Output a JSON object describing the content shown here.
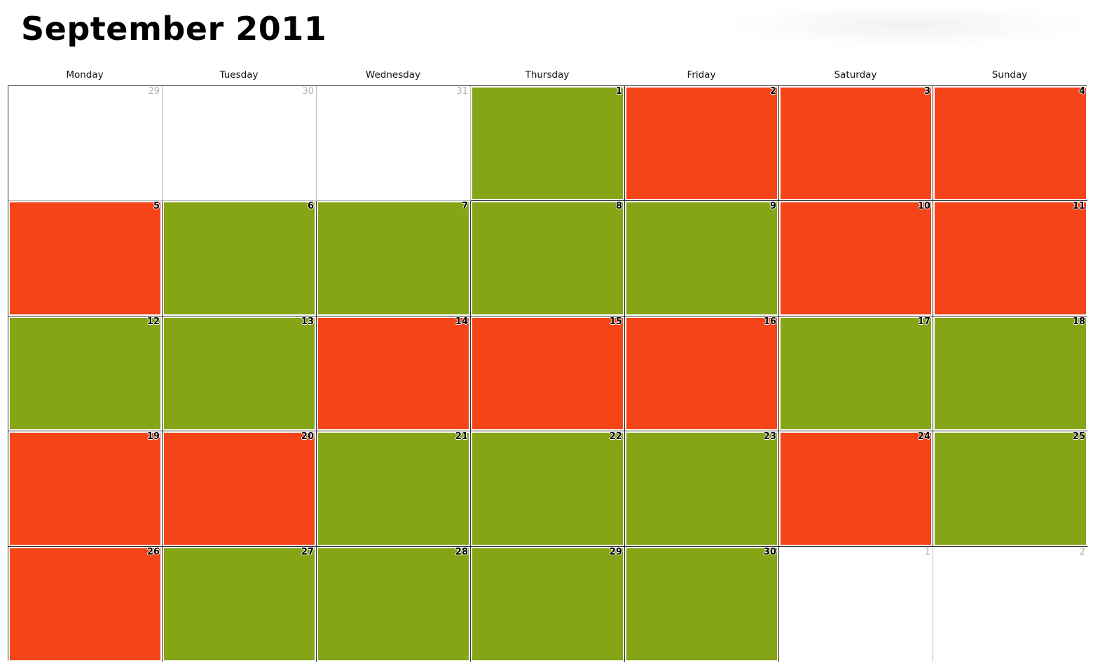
{
  "calendar": {
    "title": "September 2011",
    "weekdays": [
      "Monday",
      "Tuesday",
      "Wednesday",
      "Thursday",
      "Friday",
      "Saturday",
      "Sunday"
    ],
    "colors": {
      "green": "#86a516",
      "red": "#f54417",
      "empty": "#ffffff"
    },
    "weeks": [
      [
        {
          "day": "29",
          "status": "other"
        },
        {
          "day": "30",
          "status": "other"
        },
        {
          "day": "31",
          "status": "other"
        },
        {
          "day": "1",
          "status": "green"
        },
        {
          "day": "2",
          "status": "red"
        },
        {
          "day": "3",
          "status": "red"
        },
        {
          "day": "4",
          "status": "red"
        }
      ],
      [
        {
          "day": "5",
          "status": "red"
        },
        {
          "day": "6",
          "status": "green"
        },
        {
          "day": "7",
          "status": "green"
        },
        {
          "day": "8",
          "status": "green"
        },
        {
          "day": "9",
          "status": "green"
        },
        {
          "day": "10",
          "status": "red"
        },
        {
          "day": "11",
          "status": "red"
        }
      ],
      [
        {
          "day": "12",
          "status": "green"
        },
        {
          "day": "13",
          "status": "green"
        },
        {
          "day": "14",
          "status": "red"
        },
        {
          "day": "15",
          "status": "red"
        },
        {
          "day": "16",
          "status": "red"
        },
        {
          "day": "17",
          "status": "green"
        },
        {
          "day": "18",
          "status": "green"
        }
      ],
      [
        {
          "day": "19",
          "status": "red"
        },
        {
          "day": "20",
          "status": "red"
        },
        {
          "day": "21",
          "status": "green"
        },
        {
          "day": "22",
          "status": "green"
        },
        {
          "day": "23",
          "status": "green"
        },
        {
          "day": "24",
          "status": "red"
        },
        {
          "day": "25",
          "status": "green"
        }
      ],
      [
        {
          "day": "26",
          "status": "red"
        },
        {
          "day": "27",
          "status": "green"
        },
        {
          "day": "28",
          "status": "green"
        },
        {
          "day": "29",
          "status": "green"
        },
        {
          "day": "30",
          "status": "green"
        },
        {
          "day": "1",
          "status": "other"
        },
        {
          "day": "2",
          "status": "other"
        }
      ]
    ]
  }
}
